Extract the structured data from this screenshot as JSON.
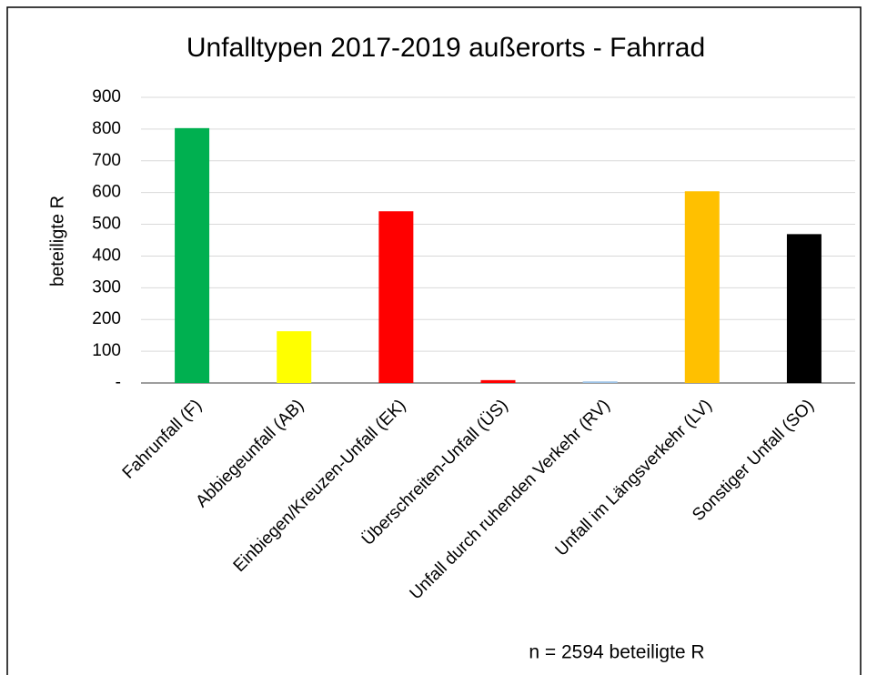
{
  "chart_data": {
    "type": "bar",
    "title": "Unfalltypen 2017-2019 außerorts - Fahrrad",
    "y_label": "beteiligte R",
    "annotation": "n = 2594 beteiligte R",
    "categories": [
      "Fahrunfall (F)",
      "Abbiegeunfall (AB)",
      "Einbiegen/Kreuzen-Unfall (EK)",
      "Überschreiten-Unfall (ÜS)",
      "Unfall durch ruhenden Verkehr (RV)",
      "Unfall im Längsverkehr (LV)",
      "Sonstiger Unfall (SO)"
    ],
    "values": [
      803,
      163,
      541,
      9,
      5,
      604,
      469
    ],
    "colors": [
      "#00b050",
      "#ffff00",
      "#ff0000",
      "#ff0000",
      "#9dc3e6",
      "#ffc000",
      "#000000"
    ],
    "ylim": [
      0,
      900
    ],
    "yticks": [
      {
        "value": 0,
        "label": "-"
      },
      100,
      200,
      300,
      400,
      500,
      600,
      700,
      800,
      900
    ],
    "grid": true
  }
}
